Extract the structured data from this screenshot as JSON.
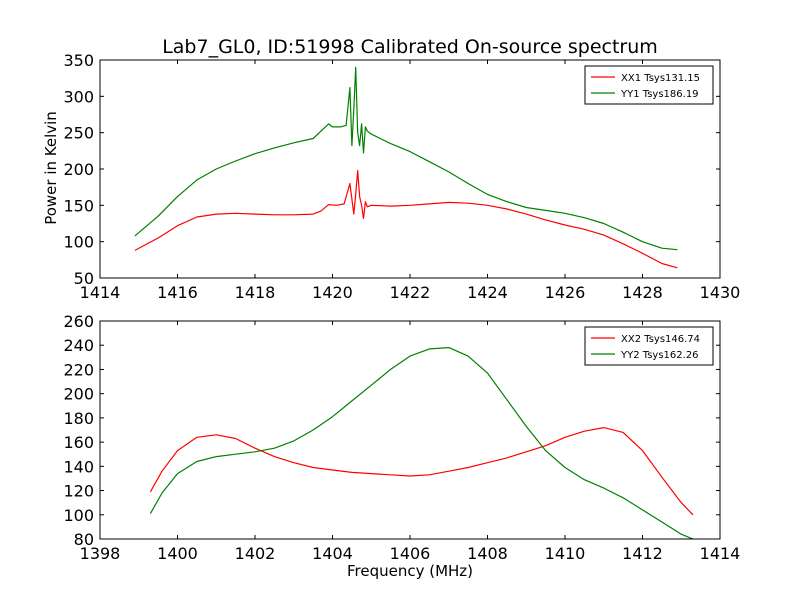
{
  "figure": {
    "title": "Lab7_GL0, ID:51998 Calibrated On-source spectrum",
    "xlabel": "Frequency (MHz)",
    "ylabel": "Power in Kelvin"
  },
  "colors": {
    "red": "#ff0000",
    "green": "#008000",
    "axes": "#000000"
  },
  "chart_data": [
    {
      "type": "line",
      "title": "Lab7_GL0, ID:51998 Calibrated On-source spectrum",
      "xlabel": "",
      "ylabel": "Power in Kelvin",
      "xlim": [
        1414,
        1430
      ],
      "ylim": [
        50,
        350
      ],
      "xticks": [
        1414,
        1416,
        1418,
        1420,
        1422,
        1424,
        1426,
        1428,
        1430
      ],
      "yticks": [
        50,
        100,
        150,
        200,
        250,
        300,
        350
      ],
      "grid": false,
      "legend_position": "top-right",
      "series": [
        {
          "name": "XX1 Tsys131.15",
          "color": "#ff0000",
          "x": [
            1414.9,
            1415.5,
            1416.0,
            1416.5,
            1417.0,
            1417.5,
            1418.0,
            1418.5,
            1419.0,
            1419.5,
            1419.7,
            1419.9,
            1420.1,
            1420.3,
            1420.45,
            1420.55,
            1420.6,
            1420.65,
            1420.7,
            1420.75,
            1420.8,
            1420.85,
            1420.9,
            1421.0,
            1421.5,
            1422.0,
            1422.5,
            1423.0,
            1423.5,
            1424.0,
            1424.5,
            1425.0,
            1425.5,
            1426.0,
            1426.5,
            1427.0,
            1427.5,
            1428.0,
            1428.5,
            1428.9
          ],
          "y": [
            88,
            105,
            122,
            134,
            138,
            139,
            138,
            137,
            137,
            138,
            142,
            151,
            150,
            152,
            180,
            138,
            165,
            198,
            162,
            150,
            132,
            155,
            148,
            150,
            149,
            150,
            152,
            154,
            153,
            150,
            145,
            138,
            130,
            123,
            117,
            109,
            97,
            84,
            70,
            64
          ]
        },
        {
          "name": "YY1 Tsys186.19",
          "color": "#008000",
          "x": [
            1414.9,
            1415.5,
            1416.0,
            1416.5,
            1417.0,
            1417.5,
            1418.0,
            1418.5,
            1419.0,
            1419.5,
            1419.7,
            1419.9,
            1420.0,
            1420.2,
            1420.35,
            1420.45,
            1420.5,
            1420.55,
            1420.6,
            1420.65,
            1420.7,
            1420.75,
            1420.8,
            1420.85,
            1420.9,
            1421.0,
            1421.5,
            1422.0,
            1422.5,
            1423.0,
            1423.5,
            1424.0,
            1424.5,
            1425.0,
            1425.5,
            1426.0,
            1426.5,
            1427.0,
            1427.5,
            1428.0,
            1428.5,
            1428.9
          ],
          "y": [
            108,
            135,
            162,
            185,
            200,
            211,
            221,
            229,
            236,
            242,
            252,
            262,
            258,
            258,
            260,
            312,
            232,
            282,
            340,
            250,
            232,
            262,
            222,
            258,
            252,
            248,
            235,
            224,
            210,
            196,
            180,
            165,
            155,
            147,
            143,
            139,
            133,
            125,
            113,
            100,
            91,
            89
          ]
        }
      ]
    },
    {
      "type": "line",
      "title": "",
      "xlabel": "Frequency (MHz)",
      "ylabel": "",
      "xlim": [
        1398,
        1414
      ],
      "ylim": [
        80,
        260
      ],
      "xticks": [
        1398,
        1400,
        1402,
        1404,
        1406,
        1408,
        1410,
        1412,
        1414
      ],
      "yticks": [
        80,
        100,
        120,
        140,
        160,
        180,
        200,
        220,
        240,
        260
      ],
      "grid": false,
      "legend_position": "top-right",
      "series": [
        {
          "name": "XX2 Tsys146.74",
          "color": "#ff0000",
          "x": [
            1399.3,
            1399.6,
            1400.0,
            1400.5,
            1401.0,
            1401.5,
            1402.0,
            1402.5,
            1403.0,
            1403.5,
            1404.0,
            1404.5,
            1405.0,
            1405.5,
            1406.0,
            1406.5,
            1407.0,
            1407.5,
            1408.0,
            1408.5,
            1409.0,
            1409.5,
            1410.0,
            1410.5,
            1411.0,
            1411.5,
            1412.0,
            1412.5,
            1413.0,
            1413.3
          ],
          "y": [
            119,
            136,
            153,
            164,
            166,
            163,
            155,
            148,
            143,
            139,
            137,
            135,
            134,
            133,
            132,
            133,
            136,
            139,
            143,
            147,
            152,
            157,
            164,
            169,
            172,
            168,
            153,
            131,
            110,
            100
          ]
        },
        {
          "name": "YY2 Tsys162.26",
          "color": "#008000",
          "x": [
            1399.3,
            1399.6,
            1400.0,
            1400.5,
            1401.0,
            1401.5,
            1402.0,
            1402.5,
            1403.0,
            1403.5,
            1404.0,
            1404.5,
            1405.0,
            1405.5,
            1406.0,
            1406.5,
            1407.0,
            1407.5,
            1408.0,
            1408.5,
            1409.0,
            1409.5,
            1410.0,
            1410.5,
            1411.0,
            1411.5,
            1412.0,
            1412.5,
            1413.0,
            1413.3
          ],
          "y": [
            101,
            118,
            134,
            144,
            148,
            150,
            152,
            155,
            161,
            170,
            181,
            194,
            207,
            220,
            231,
            237,
            238,
            231,
            217,
            195,
            173,
            153,
            139,
            129,
            122,
            114,
            104,
            94,
            84,
            80
          ]
        }
      ]
    }
  ]
}
